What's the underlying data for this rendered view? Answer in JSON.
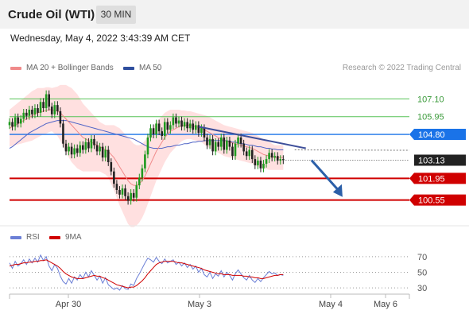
{
  "header": {
    "title": "Crude Oil (WTI)",
    "timeframe": "30 MIN"
  },
  "timestamp": "Wednesday, May 4, 2022 3:43:39 AM CET",
  "legend": {
    "ma20": "MA 20 + Bollinger Bands",
    "ma50": "MA 50",
    "credit": "Research © 2022 Trading Central"
  },
  "rsi_legend": {
    "rsi": "RSI",
    "ma9": "9MA"
  },
  "colors": {
    "bollinger": "#ffd6d6",
    "ma20": "#f08a8a",
    "ma50": "#4f63c6",
    "up": "#1e9a1e",
    "down": "#222222",
    "support": "#d00000",
    "resistance_green": "#56c256",
    "resistance_blue": "#1a73e8",
    "price_tag": "#222222",
    "arrow": "#2b5fa8",
    "rsi": "#6b7fd6"
  },
  "chart_data": [
    {
      "type": "candlestick",
      "title": "Crude Oil (WTI)",
      "ylim": [
        99.5,
        108.2
      ],
      "x_labels": [
        "Apr 30",
        "May 3",
        "May 4",
        "May 6"
      ],
      "levels": [
        {
          "value": 107.1,
          "label": "107.10",
          "kind": "resistance"
        },
        {
          "value": 105.95,
          "label": "105.95",
          "kind": "resistance"
        },
        {
          "value": 104.8,
          "label": "104.80",
          "kind": "pivot"
        },
        {
          "value": 101.95,
          "label": "101.95",
          "kind": "support"
        },
        {
          "value": 100.55,
          "label": "100.55",
          "kind": "support"
        }
      ],
      "last_price": {
        "value": 103.13,
        "label": "103.13"
      },
      "closes": [
        105.6,
        105.3,
        105.9,
        105.5,
        105.8,
        106.2,
        106.0,
        106.4,
        106.1,
        106.5,
        106.2,
        106.9,
        106.5,
        107.4,
        106.6,
        106.1,
        106.7,
        106.3,
        105.5,
        104.2,
        103.7,
        104.0,
        103.5,
        103.9,
        103.6,
        104.1,
        103.8,
        104.3,
        103.9,
        104.5,
        104.1,
        103.7,
        104.0,
        103.3,
        103.8,
        103.0,
        102.4,
        101.6,
        101.2,
        100.9,
        101.3,
        100.8,
        100.5,
        101.0,
        100.7,
        101.5,
        102.0,
        102.6,
        103.5,
        104.6,
        105.2,
        104.8,
        105.5,
        105.0,
        104.7,
        105.6,
        105.1,
        105.4,
        105.9,
        105.5,
        105.7,
        105.3,
        105.6,
        105.2,
        105.5,
        105.1,
        105.4,
        104.9,
        105.2,
        104.6,
        104.1,
        104.5,
        103.7,
        104.3,
        104.0,
        104.6,
        103.8,
        104.4,
        104.0,
        103.4,
        104.2,
        104.6,
        104.2,
        103.7,
        103.4,
        103.8,
        103.2,
        102.8,
        103.1,
        102.6,
        102.9,
        103.2,
        103.6,
        103.3,
        103.4,
        103.1,
        103.2,
        103.13
      ],
      "ma20": [
        105.2,
        105.3,
        105.4,
        105.5,
        105.6,
        105.7,
        105.8,
        105.9,
        106.0,
        106.1,
        106.2,
        106.25,
        106.3,
        106.35,
        106.4,
        106.4,
        106.35,
        106.3,
        106.2,
        106.0,
        105.8,
        105.6,
        105.4,
        105.2,
        105.0,
        104.8,
        104.6,
        104.5,
        104.4,
        104.3,
        104.2,
        104.1,
        104.0,
        103.9,
        103.8,
        103.7,
        103.5,
        103.3,
        103.0,
        102.7,
        102.4,
        102.1,
        101.8,
        101.6,
        101.5,
        101.5,
        101.6,
        101.8,
        102.1,
        102.5,
        102.9,
        103.3,
        103.7,
        104.0,
        104.3,
        104.6,
        104.8,
        105.0,
        105.1,
        105.2,
        105.3,
        105.35,
        105.4,
        105.4,
        105.4,
        105.35,
        105.3,
        105.25,
        105.2,
        105.1,
        105.0,
        104.9,
        104.8,
        104.7,
        104.6,
        104.5,
        104.4,
        104.35,
        104.3,
        104.25,
        104.2,
        104.15,
        104.1,
        104.05,
        104.0,
        103.95,
        103.9,
        103.8,
        103.7,
        103.6,
        103.5,
        103.45,
        103.4,
        103.35,
        103.3,
        103.3,
        103.3,
        103.3
      ],
      "ma50": [
        103.9,
        104.0,
        104.15,
        104.3,
        104.45,
        104.6,
        104.75,
        104.9,
        105.0,
        105.1,
        105.2,
        105.3,
        105.4,
        105.5,
        105.55,
        105.6,
        105.65,
        105.7,
        105.7,
        105.7,
        105.7,
        105.65,
        105.6,
        105.55,
        105.5,
        105.45,
        105.4,
        105.35,
        105.3,
        105.25,
        105.2,
        105.15,
        105.1,
        105.05,
        105.0,
        104.95,
        104.9,
        104.85,
        104.8,
        104.75,
        104.7,
        104.65,
        104.6,
        104.55,
        104.5,
        104.4,
        104.3,
        104.2,
        104.1,
        104.0,
        103.95,
        103.9,
        103.9,
        103.9,
        103.9,
        103.95,
        104.0,
        104.0,
        104.05,
        104.1,
        104.1,
        104.15,
        104.2,
        104.2,
        104.25,
        104.3,
        104.3,
        104.35,
        104.35,
        104.4,
        104.4,
        104.4,
        104.4,
        104.4,
        104.4,
        104.4,
        104.4,
        104.4,
        104.35,
        104.3,
        104.3,
        104.25,
        104.2,
        104.2,
        104.15,
        104.1,
        104.1,
        104.05,
        104.0,
        104.0,
        103.95,
        103.9,
        103.9,
        103.85,
        103.85,
        103.8,
        103.8,
        103.8
      ],
      "bb_width": [
        1.2,
        1.25,
        1.3,
        1.35,
        1.4,
        1.45,
        1.5,
        1.55,
        1.6,
        1.6,
        1.6,
        1.55,
        1.5,
        1.5,
        1.45,
        1.4,
        1.5,
        1.6,
        1.8,
        2.0,
        2.2,
        2.3,
        2.4,
        2.4,
        2.4,
        2.3,
        2.2,
        2.1,
        2.0,
        1.9,
        1.8,
        1.7,
        1.6,
        1.6,
        1.6,
        1.7,
        1.9,
        2.1,
        2.3,
        2.5,
        2.6,
        2.7,
        2.8,
        2.8,
        2.7,
        2.6,
        2.5,
        2.4,
        2.3,
        2.2,
        2.1,
        2.0,
        1.9,
        1.8,
        1.7,
        1.6,
        1.5,
        1.4,
        1.3,
        1.2,
        1.1,
        1.0,
        0.95,
        0.9,
        0.9,
        0.9,
        0.9,
        0.9,
        0.9,
        0.95,
        1.0,
        1.0,
        1.0,
        1.0,
        1.0,
        1.0,
        1.0,
        1.0,
        1.0,
        1.0,
        1.0,
        1.0,
        1.0,
        1.0,
        1.0,
        1.0,
        1.0,
        1.0,
        1.0,
        1.0,
        0.95,
        0.9,
        0.9,
        0.85,
        0.8,
        0.8,
        0.8,
        0.8
      ],
      "trendline": {
        "from": {
          "index": 67,
          "value": 105.3
        },
        "to": {
          "index": 105,
          "value": 103.9
        }
      },
      "projection": {
        "from": {
          "index": 107,
          "value": 103.13
        },
        "to": {
          "index": 118,
          "value": 100.75
        }
      }
    },
    {
      "type": "line",
      "title": "RSI",
      "ylim": [
        24,
        80
      ],
      "y_ticks": [
        30,
        50,
        70
      ],
      "series": [
        {
          "name": "RSI",
          "values": [
            62,
            55,
            64,
            58,
            61,
            66,
            60,
            67,
            62,
            68,
            63,
            72,
            65,
            70,
            58,
            52,
            60,
            55,
            45,
            38,
            35,
            42,
            36,
            44,
            40,
            47,
            42,
            50,
            44,
            52,
            46,
            40,
            45,
            36,
            43,
            34,
            31,
            28,
            30,
            27,
            33,
            29,
            28,
            35,
            33,
            42,
            48,
            55,
            62,
            68,
            66,
            63,
            69,
            64,
            61,
            67,
            62,
            64,
            66,
            60,
            63,
            58,
            62,
            56,
            60,
            54,
            58,
            50,
            55,
            47,
            44,
            50,
            42,
            48,
            45,
            52,
            44,
            50,
            46,
            40,
            48,
            53,
            48,
            43,
            40,
            46,
            40,
            37,
            42,
            38,
            43,
            47,
            51,
            48,
            49,
            46,
            47,
            46
          ]
        },
        {
          "name": "9MA",
          "values": [
            58,
            59,
            60,
            60,
            61,
            62,
            62,
            63,
            63,
            64,
            64,
            65,
            65,
            66,
            64,
            62,
            60,
            58,
            55,
            51,
            48,
            46,
            44,
            43,
            42,
            42,
            42,
            43,
            44,
            45,
            46,
            45,
            45,
            43,
            42,
            40,
            38,
            36,
            34,
            33,
            32,
            31,
            30,
            31,
            31,
            33,
            36,
            39,
            43,
            48,
            52,
            56,
            60,
            62,
            63,
            64,
            64,
            64,
            64,
            63,
            62,
            62,
            61,
            60,
            59,
            58,
            57,
            56,
            55,
            53,
            52,
            51,
            50,
            49,
            48,
            48,
            47,
            47,
            47,
            46,
            46,
            46,
            46,
            45,
            45,
            44,
            44,
            43,
            43,
            42,
            42,
            43,
            44,
            45,
            46,
            46,
            47,
            47
          ]
        }
      ]
    }
  ]
}
